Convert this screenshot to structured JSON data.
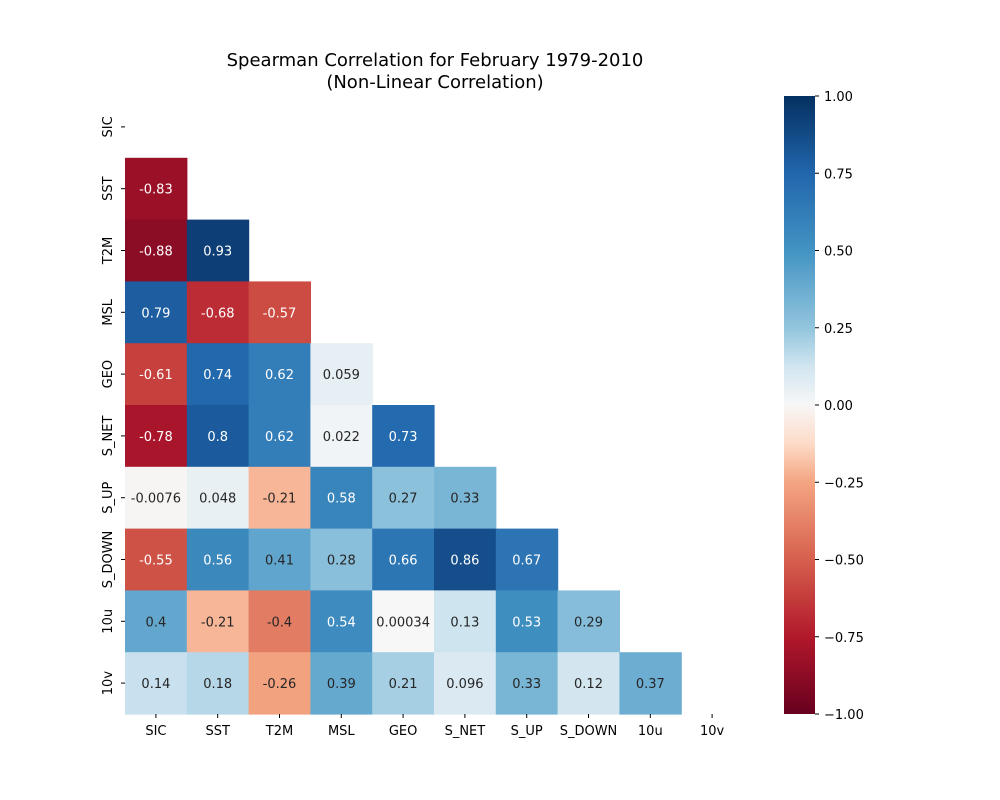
{
  "chart_data": {
    "type": "heatmap",
    "title": "Spearman Correlation for February 1979-2010",
    "subtitle": "(Non-Linear Correlation)",
    "xlabel": "",
    "ylabel": "",
    "x_labels": [
      "SIC",
      "SST",
      "T2M",
      "MSL",
      "GEO",
      "S_NET",
      "S_UP",
      "S_DOWN",
      "10u",
      "10v"
    ],
    "y_labels": [
      "SIC",
      "SST",
      "T2M",
      "MSL",
      "GEO",
      "S_NET",
      "S_UP",
      "S_DOWN",
      "10u",
      "10v"
    ],
    "mask": "upper triangle including diagonal",
    "values": [
      [
        null,
        null,
        null,
        null,
        null,
        null,
        null,
        null,
        null,
        null
      ],
      [
        -0.83,
        null,
        null,
        null,
        null,
        null,
        null,
        null,
        null,
        null
      ],
      [
        -0.88,
        0.93,
        null,
        null,
        null,
        null,
        null,
        null,
        null,
        null
      ],
      [
        0.79,
        -0.68,
        -0.57,
        null,
        null,
        null,
        null,
        null,
        null,
        null
      ],
      [
        -0.61,
        0.74,
        0.62,
        0.059,
        null,
        null,
        null,
        null,
        null,
        null
      ],
      [
        -0.78,
        0.8,
        0.62,
        0.022,
        0.73,
        null,
        null,
        null,
        null,
        null
      ],
      [
        -0.0076,
        0.048,
        -0.21,
        0.58,
        0.27,
        0.33,
        null,
        null,
        null,
        null
      ],
      [
        -0.55,
        0.56,
        0.41,
        0.28,
        0.66,
        0.86,
        0.67,
        null,
        null,
        null
      ],
      [
        0.4,
        -0.21,
        -0.4,
        0.54,
        0.00034,
        0.13,
        0.53,
        0.29,
        null,
        null
      ],
      [
        0.14,
        0.18,
        -0.26,
        0.39,
        0.21,
        0.096,
        0.33,
        0.12,
        0.37,
        null
      ]
    ],
    "value_labels": [
      [
        null,
        null,
        null,
        null,
        null,
        null,
        null,
        null,
        null,
        null
      ],
      [
        "-0.83",
        null,
        null,
        null,
        null,
        null,
        null,
        null,
        null,
        null
      ],
      [
        "-0.88",
        "0.93",
        null,
        null,
        null,
        null,
        null,
        null,
        null,
        null
      ],
      [
        "0.79",
        "-0.68",
        "-0.57",
        null,
        null,
        null,
        null,
        null,
        null,
        null
      ],
      [
        "-0.61",
        "0.74",
        "0.62",
        "0.059",
        null,
        null,
        null,
        null,
        null,
        null
      ],
      [
        "-0.78",
        "0.8",
        "0.62",
        "0.022",
        "0.73",
        null,
        null,
        null,
        null,
        null
      ],
      [
        "-0.0076",
        "0.048",
        "-0.21",
        "0.58",
        "0.27",
        "0.33",
        null,
        null,
        null,
        null
      ],
      [
        "-0.55",
        "0.56",
        "0.41",
        "0.28",
        "0.66",
        "0.86",
        "0.67",
        null,
        null,
        null
      ],
      [
        "0.4",
        "-0.21",
        "-0.4",
        "0.54",
        "0.00034",
        "0.13",
        "0.53",
        "0.29",
        null,
        null
      ],
      [
        "0.14",
        "0.18",
        "-0.26",
        "0.39",
        "0.21",
        "0.096",
        "0.33",
        "0.12",
        "0.37",
        null
      ]
    ],
    "colormap": "RdBu",
    "vmin": -1.0,
    "vmax": 1.0,
    "colorbar_ticks": [
      1.0,
      0.75,
      0.5,
      0.25,
      0.0,
      -0.25,
      -0.5,
      -0.75,
      -1.0
    ],
    "colorbar_tick_labels": [
      "1.00",
      "0.75",
      "0.50",
      "0.25",
      "0.00",
      "−0.25",
      "−0.50",
      "−0.75",
      "−1.00"
    ],
    "colormap_stops": [
      {
        "v": -1.0,
        "color": "#67001f"
      },
      {
        "v": -0.75,
        "color": "#b2182b"
      },
      {
        "v": -0.5,
        "color": "#d6604d"
      },
      {
        "v": -0.25,
        "color": "#f4a582"
      },
      {
        "v": -0.125,
        "color": "#fddbc7"
      },
      {
        "v": 0.0,
        "color": "#f7f7f7"
      },
      {
        "v": 0.125,
        "color": "#d1e5f0"
      },
      {
        "v": 0.25,
        "color": "#92c5de"
      },
      {
        "v": 0.5,
        "color": "#4393c3"
      },
      {
        "v": 0.75,
        "color": "#2166ac"
      },
      {
        "v": 1.0,
        "color": "#053061"
      }
    ]
  }
}
